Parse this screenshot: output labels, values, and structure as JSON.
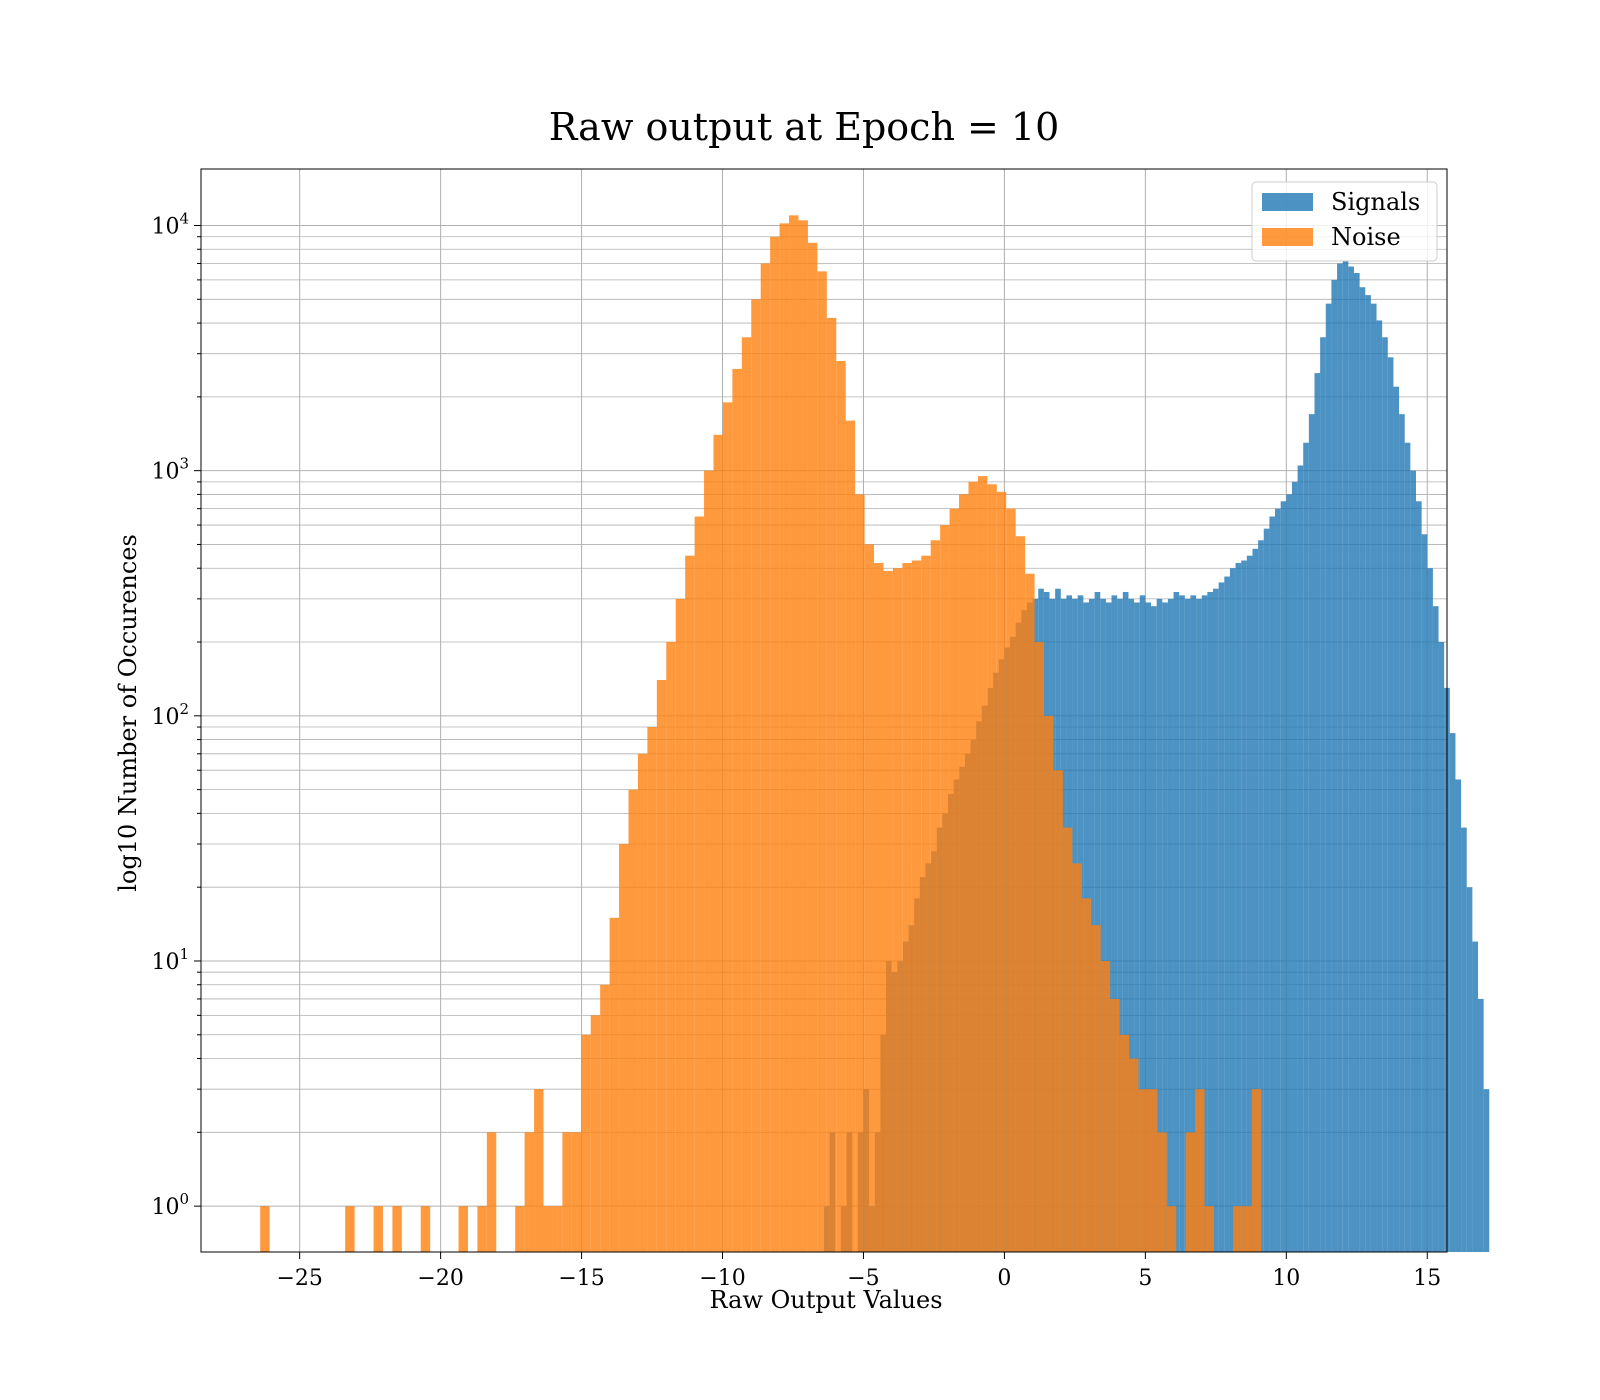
{
  "chart_data": {
    "type": "bar",
    "title": "Raw output at Epoch = 10",
    "xlabel": "Raw Output Values",
    "ylabel": "log10 Number of Occurences",
    "y_scale": "log",
    "xlim": [
      -28.5,
      15.7
    ],
    "ylim": [
      0.65,
      17000
    ],
    "grid": true,
    "legend_position": "top-right",
    "x_ticks": [
      -25,
      -20,
      -15,
      -10,
      -5,
      0,
      5,
      10,
      15
    ],
    "x_tick_labels": [
      "−25",
      "−20",
      "−15",
      "−10",
      "−5",
      "0",
      "5",
      "10",
      "15"
    ],
    "y_ticks": [
      1,
      10,
      100,
      1000,
      10000
    ],
    "y_tick_labels": [
      {
        "base": "10",
        "exp": "0"
      },
      {
        "base": "10",
        "exp": "1"
      },
      {
        "base": "10",
        "exp": "2"
      },
      {
        "base": "10",
        "exp": "3"
      },
      {
        "base": "10",
        "exp": "4"
      }
    ],
    "series": [
      {
        "name": "Signals",
        "color": "#1f77b4",
        "opacity": 0.8,
        "bin_start": -6.4,
        "bin_width": 0.2,
        "counts": [
          1,
          2,
          0,
          1,
          2,
          0,
          2,
          3,
          1,
          2,
          5,
          10,
          9,
          10,
          12,
          14,
          18,
          22,
          25,
          28,
          35,
          40,
          48,
          55,
          62,
          70,
          80,
          95,
          110,
          130,
          150,
          170,
          190,
          210,
          240,
          270,
          290,
          300,
          330,
          320,
          300,
          330,
          300,
          310,
          300,
          310,
          290,
          300,
          320,
          300,
          290,
          310,
          300,
          320,
          300,
          290,
          310,
          290,
          280,
          300,
          290,
          300,
          320,
          310,
          300,
          310,
          300,
          310,
          320,
          330,
          350,
          370,
          400,
          420,
          430,
          450,
          480,
          520,
          580,
          650,
          700,
          750,
          800,
          900,
          1050,
          1300,
          1700,
          2500,
          3500,
          4800,
          6000,
          7000,
          7200,
          6800,
          6400,
          5600,
          5200,
          4800,
          4100,
          3500,
          2900,
          2200,
          1700,
          1300,
          1000,
          750,
          550,
          400,
          280,
          200,
          130,
          85,
          55,
          35,
          20,
          12,
          7,
          3
        ]
      },
      {
        "name": "Noise",
        "color": "#ff7f0e",
        "opacity": 0.8,
        "bin_start": -26.4,
        "bin_width": 0.335,
        "counts": [
          1,
          0,
          0,
          0,
          0,
          0,
          0,
          0,
          0,
          1,
          0,
          0,
          1,
          0,
          1,
          0,
          0,
          1,
          0,
          0,
          0,
          1,
          0,
          1,
          2,
          0,
          0,
          1,
          2,
          3,
          1,
          1,
          2,
          2,
          5,
          6,
          8,
          15,
          30,
          50,
          70,
          90,
          140,
          200,
          300,
          450,
          650,
          1000,
          1400,
          1900,
          2600,
          3500,
          5000,
          7000,
          9000,
          10200,
          11000,
          10500,
          8500,
          6500,
          4200,
          2800,
          1600,
          800,
          500,
          420,
          390,
          400,
          420,
          430,
          450,
          520,
          600,
          700,
          800,
          900,
          950,
          880,
          820,
          700,
          540,
          380,
          200,
          100,
          60,
          35,
          25,
          18,
          14,
          10,
          7,
          5,
          4,
          3,
          3,
          2,
          1,
          0,
          2,
          3,
          1,
          0,
          0,
          1,
          1,
          3
        ]
      }
    ]
  }
}
